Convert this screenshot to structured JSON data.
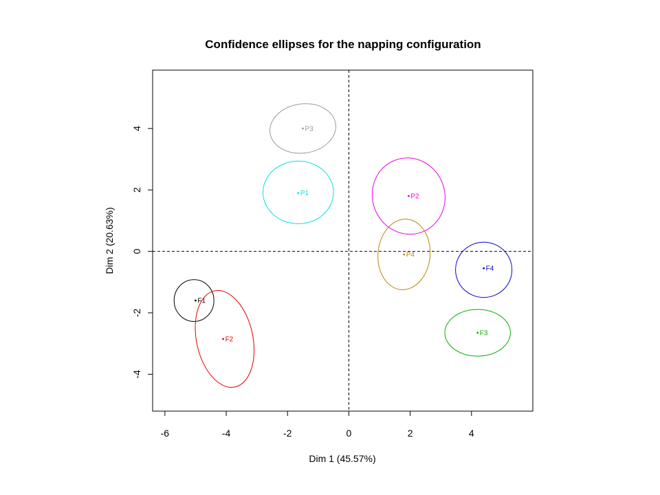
{
  "chart_data": {
    "type": "scatter",
    "title": "Confidence ellipses for the napping configuration",
    "xlabel": "Dim 1 (45.57%)",
    "ylabel": "Dim 2 (20.63%)",
    "xlim": [
      -6.4,
      6.0
    ],
    "ylim": [
      -5.2,
      5.9
    ],
    "xticks": [
      "-6",
      "-4",
      "-2",
      "0",
      "2",
      "4"
    ],
    "yticks": [
      "-4",
      "-2",
      "0",
      "2",
      "4"
    ],
    "grid": false,
    "reference_lines": {
      "x": 0,
      "y": 0,
      "style": "dashed"
    },
    "series": [
      {
        "name": "F1",
        "x": -5.0,
        "y": -1.6,
        "color": "#000000",
        "ellipse": {
          "cx": -5.05,
          "cy": -1.6,
          "rx": 0.65,
          "ry": 0.68,
          "angle": 0
        }
      },
      {
        "name": "F2",
        "x": -4.1,
        "y": -2.85,
        "color": "#DF0000",
        "ellipse": {
          "cx": -4.05,
          "cy": -2.85,
          "rx": 0.92,
          "ry": 1.6,
          "angle": 12
        }
      },
      {
        "name": "P3",
        "x": -1.5,
        "y": 4.0,
        "color": "#999999",
        "ellipse": {
          "cx": -1.5,
          "cy": 4.0,
          "rx": 1.08,
          "ry": 0.8,
          "angle": 8
        }
      },
      {
        "name": "P1",
        "x": -1.65,
        "y": 1.9,
        "color": "#00E5E5",
        "ellipse": {
          "cx": -1.65,
          "cy": 1.92,
          "rx": 1.15,
          "ry": 1.02,
          "angle": 0
        }
      },
      {
        "name": "P2",
        "x": 1.95,
        "y": 1.8,
        "color": "#E600E6",
        "ellipse": {
          "cx": 1.95,
          "cy": 1.8,
          "rx": 1.18,
          "ry": 1.25,
          "angle": 20
        }
      },
      {
        "name": "P4",
        "x": 1.8,
        "y": -0.1,
        "color": "#B8860B",
        "ellipse": {
          "cx": 1.8,
          "cy": -0.1,
          "rx": 0.85,
          "ry": 1.15,
          "angle": -5
        }
      },
      {
        "name": "F4",
        "x": 4.4,
        "y": -0.55,
        "color": "#0000CD",
        "ellipse": {
          "cx": 4.4,
          "cy": -0.6,
          "rx": 0.92,
          "ry": 0.9,
          "angle": 0
        }
      },
      {
        "name": "F3",
        "x": 4.2,
        "y": -2.65,
        "color": "#00B000",
        "ellipse": {
          "cx": 4.2,
          "cy": -2.65,
          "rx": 1.07,
          "ry": 0.76,
          "angle": 0
        }
      }
    ]
  }
}
